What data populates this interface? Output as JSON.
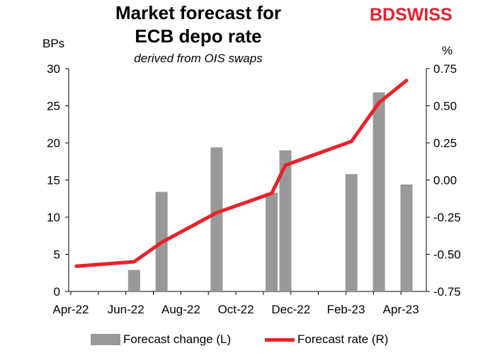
{
  "chart_data": {
    "type": "bar+line",
    "title": "Market forecast for ECB depo  rate",
    "title_lines": [
      "Market forecast for",
      "ECB depo  rate"
    ],
    "subtitle": "derived from OIS swaps",
    "left_unit": "BPs",
    "right_unit": "%",
    "left_axis": {
      "min": 0,
      "max": 30,
      "ticks": [
        "0",
        "5",
        "10",
        "15",
        "20",
        "25",
        "30"
      ]
    },
    "right_axis": {
      "min": -0.75,
      "max": 0.75,
      "ticks": [
        "-0.75",
        "-0.50",
        "-0.25",
        "0.00",
        "0.25",
        "0.50",
        "0.75"
      ]
    },
    "x_ticks": [
      "Apr-22",
      "Jun-22",
      "Aug-22",
      "Oct-22",
      "Dec-22",
      "Feb-23",
      "Apr-23"
    ],
    "series": [
      {
        "name": "Forecast change (L)",
        "kind": "bar",
        "color": "#999999",
        "points": [
          {
            "month": 2.3,
            "value": 2.9
          },
          {
            "month": 3.3,
            "value": 13.4
          },
          {
            "month": 5.3,
            "value": 19.4
          },
          {
            "month": 7.3,
            "value": 13.3
          },
          {
            "month": 7.8,
            "value": 19.0
          },
          {
            "month": 10.2,
            "value": 15.8
          },
          {
            "month": 11.2,
            "value": 26.8
          },
          {
            "month": 12.2,
            "value": 14.4
          }
        ]
      },
      {
        "name": "Forecast rate (R)",
        "kind": "line",
        "color": "#e8232b",
        "points": [
          {
            "month": 0.2,
            "value": -0.58
          },
          {
            "month": 2.3,
            "value": -0.55
          },
          {
            "month": 3.3,
            "value": -0.42
          },
          {
            "month": 5.3,
            "value": -0.22
          },
          {
            "month": 7.3,
            "value": -0.09
          },
          {
            "month": 7.8,
            "value": 0.1
          },
          {
            "month": 10.2,
            "value": 0.26
          },
          {
            "month": 11.2,
            "value": 0.52
          },
          {
            "month": 12.2,
            "value": 0.67
          }
        ]
      }
    ],
    "legend_position": "bottom"
  },
  "logo": {
    "part1": "BD",
    "part2": "SWISS"
  }
}
